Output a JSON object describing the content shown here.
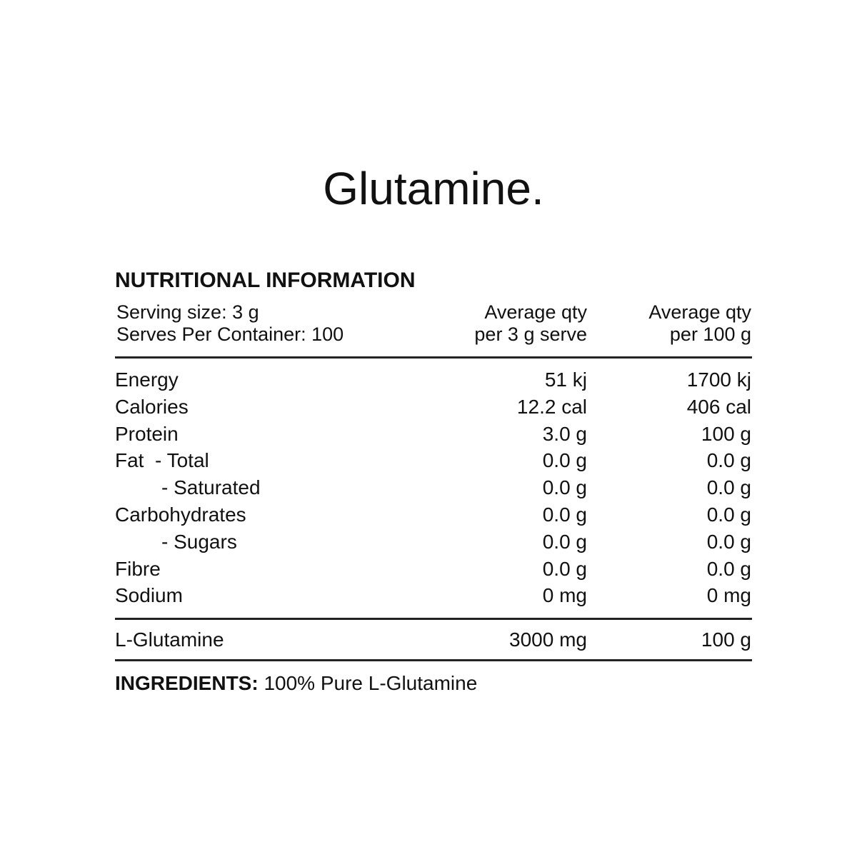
{
  "title": "Glutamine.",
  "section_title": "NUTRITIONAL INFORMATION",
  "serving": [
    "Serving size: 3 g",
    "Serves Per Container: 100"
  ],
  "columns": [
    [
      "Average qty",
      "per 3 g serve"
    ],
    [
      "Average qty",
      "per 100 g"
    ]
  ],
  "rows": [
    [
      "Energy",
      "51 kj",
      "1700 kj"
    ],
    [
      "Calories",
      "12.2 cal",
      "406 cal"
    ],
    [
      "Protein",
      "3.0 g",
      "100 g"
    ],
    [
      "Fat  - Total",
      "0.0 g",
      "0.0 g"
    ],
    [
      "- Saturated",
      "0.0 g",
      "0.0 g"
    ],
    [
      "Carbohydrates",
      "0.0 g",
      "0.0 g"
    ],
    [
      "- Sugars",
      "0.0 g",
      "0.0 g"
    ],
    [
      "Fibre",
      "0.0 g",
      "0.0 g"
    ],
    [
      "Sodium",
      "0 mg",
      "0 mg"
    ]
  ],
  "footer_row": [
    "L-Glutamine",
    "3000 mg",
    "100 g"
  ],
  "ingredients": {
    "label": "INGREDIENTS:",
    "text": "100% Pure L-Glutamine"
  }
}
